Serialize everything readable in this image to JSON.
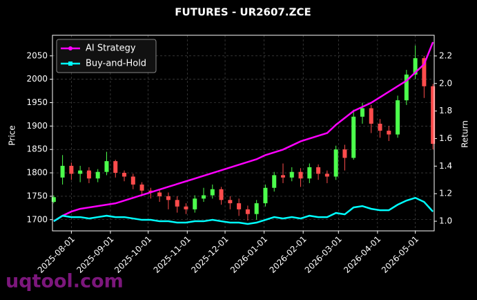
{
  "chart_data": {
    "type": "candlestick",
    "title": "FUTURES - UR2607.ZCE",
    "ylabel": "Price",
    "y2label": "Return",
    "watermark": "uqtool.com",
    "grid": true,
    "legend": "upper left",
    "up_color": "#4cff4c",
    "down_color": "#ff4c4c",
    "x": [
      "2025-07-18",
      "2025-07-25",
      "2025-08-01",
      "2025-08-08",
      "2025-08-15",
      "2025-08-22",
      "2025-08-29",
      "2025-09-05",
      "2025-09-12",
      "2025-09-19",
      "2025-09-26",
      "2025-10-03",
      "2025-10-10",
      "2025-10-17",
      "2025-10-24",
      "2025-10-31",
      "2025-11-07",
      "2025-11-14",
      "2025-11-21",
      "2025-11-28",
      "2025-12-05",
      "2025-12-12",
      "2025-12-19",
      "2025-12-26",
      "2026-01-02",
      "2026-01-09",
      "2026-01-16",
      "2026-01-23",
      "2026-01-30",
      "2026-02-06",
      "2026-02-13",
      "2026-02-20",
      "2026-02-27",
      "2026-03-06",
      "2026-03-13",
      "2026-03-20",
      "2026-03-27",
      "2026-04-03",
      "2026-04-10",
      "2026-04-17",
      "2026-04-24",
      "2026-05-01",
      "2026-05-08",
      "2026-05-15"
    ],
    "open": [
      1738,
      1790,
      1815,
      1798,
      1805,
      1788,
      1802,
      1825,
      1800,
      1792,
      1775,
      1762,
      1758,
      1750,
      1742,
      1728,
      1722,
      1745,
      1752,
      1765,
      1742,
      1735,
      1722,
      1712,
      1735,
      1768,
      1795,
      1790,
      1802,
      1788,
      1812,
      1798,
      1792,
      1850,
      1832,
      1920,
      1938,
      1905,
      1890,
      1882,
      1955,
      2010,
      2045,
      1985
    ],
    "high": [
      1752,
      1838,
      1822,
      1815,
      1812,
      1808,
      1845,
      1828,
      1805,
      1798,
      1780,
      1768,
      1765,
      1758,
      1750,
      1735,
      1752,
      1768,
      1775,
      1770,
      1750,
      1745,
      1730,
      1742,
      1775,
      1802,
      1820,
      1812,
      1810,
      1820,
      1818,
      1805,
      1858,
      1860,
      1935,
      1950,
      1945,
      1915,
      1900,
      1965,
      2020,
      2072,
      2050,
      1990
    ],
    "low": [
      1735,
      1775,
      1785,
      1780,
      1778,
      1780,
      1795,
      1790,
      1782,
      1765,
      1750,
      1745,
      1738,
      1722,
      1715,
      1712,
      1715,
      1738,
      1745,
      1732,
      1722,
      1708,
      1698,
      1700,
      1728,
      1760,
      1778,
      1782,
      1770,
      1778,
      1785,
      1778,
      1785,
      1805,
      1828,
      1905,
      1885,
      1875,
      1868,
      1875,
      1945,
      2000,
      1960,
      1850
    ],
    "close": [
      1748,
      1815,
      1798,
      1805,
      1788,
      1802,
      1825,
      1800,
      1792,
      1775,
      1762,
      1758,
      1750,
      1742,
      1728,
      1722,
      1745,
      1752,
      1765,
      1742,
      1735,
      1722,
      1712,
      1735,
      1768,
      1795,
      1790,
      1802,
      1788,
      1812,
      1798,
      1792,
      1850,
      1832,
      1920,
      1938,
      1905,
      1890,
      1882,
      1955,
      2010,
      2045,
      1985,
      1862
    ],
    "series": [
      {
        "name": "AI Strategy",
        "color": "#ff00ff",
        "axis": "y2",
        "values": [
          1.0,
          1.04,
          1.07,
          1.09,
          1.1,
          1.11,
          1.12,
          1.13,
          1.15,
          1.17,
          1.19,
          1.21,
          1.23,
          1.25,
          1.27,
          1.29,
          1.31,
          1.33,
          1.35,
          1.37,
          1.39,
          1.41,
          1.43,
          1.45,
          1.48,
          1.5,
          1.52,
          1.55,
          1.58,
          1.6,
          1.62,
          1.64,
          1.7,
          1.75,
          1.8,
          1.83,
          1.86,
          1.9,
          1.94,
          1.98,
          2.02,
          2.08,
          2.14,
          2.3
        ]
      },
      {
        "name": "Buy-and-Hold",
        "color": "#00ffff",
        "axis": "y2",
        "values": [
          1.0,
          1.04,
          1.03,
          1.03,
          1.02,
          1.03,
          1.04,
          1.03,
          1.03,
          1.02,
          1.01,
          1.01,
          1.0,
          1.0,
          0.99,
          0.99,
          1.0,
          1.0,
          1.01,
          1.0,
          0.99,
          0.99,
          0.98,
          0.99,
          1.01,
          1.03,
          1.02,
          1.03,
          1.02,
          1.04,
          1.03,
          1.03,
          1.06,
          1.05,
          1.1,
          1.11,
          1.09,
          1.08,
          1.08,
          1.12,
          1.15,
          1.17,
          1.14,
          1.07
        ]
      }
    ],
    "xlim": [
      "2025-07-17",
      "2026-05-16"
    ],
    "xticks": [
      "2025-08-01",
      "2025-09-01",
      "2025-10-01",
      "2025-11-01",
      "2025-12-01",
      "2026-01-01",
      "2026-02-01",
      "2026-03-01",
      "2026-04-01",
      "2026-05-01"
    ],
    "ylim": [
      1676,
      2094
    ],
    "yticks": [
      1700,
      1750,
      1800,
      1850,
      1900,
      1950,
      2000,
      2050
    ],
    "y2lim": [
      0.93,
      2.35
    ],
    "y2ticks": [
      {
        "value": 1.0,
        "label": "1.0"
      },
      1.2,
      1.4,
      1.6,
      1.8,
      {
        "value": 2.0,
        "label": "2.0"
      },
      2.2
    ]
  }
}
